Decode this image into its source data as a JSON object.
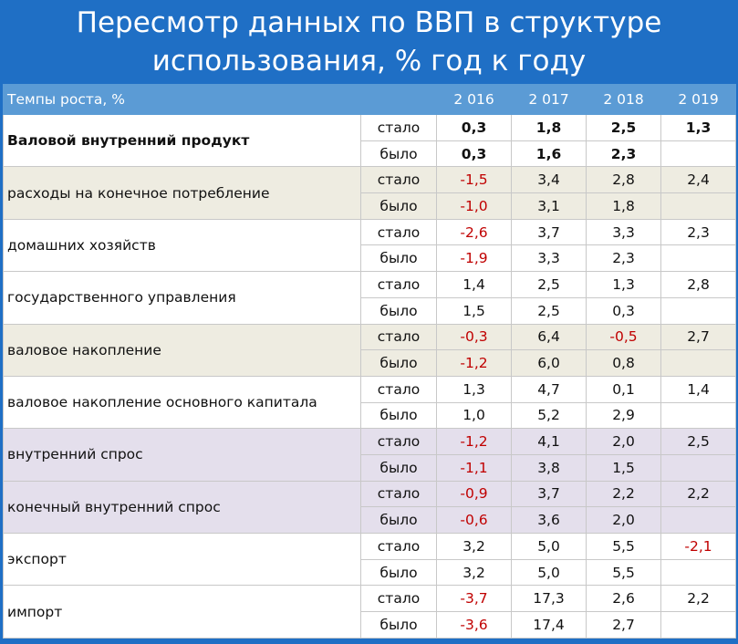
{
  "header": {
    "title": [
      "Пересмотр данных по ВВП в структуре",
      "использования, % год к году"
    ]
  },
  "table": {
    "columns": [
      "Темпы роста, %",
      "2 016",
      "2 017",
      "2 018",
      "2 019"
    ],
    "groups": [
      {
        "name": "Валовой внутренний продукт",
        "bold": true,
        "color": "#ffffff",
        "rows": [
          {
            "kind": "стало",
            "values": [
              "0,3",
              "1,8",
              "2,5",
              "1,3"
            ]
          },
          {
            "kind": "было",
            "values": [
              "0,3",
              "1,6",
              "2,3"
            ]
          }
        ]
      },
      {
        "name": "расходы на конечное потребление",
        "color": "#eeece1",
        "rows": [
          {
            "kind": "стало",
            "values": [
              "-1,5",
              "3,4",
              "2,8",
              "2,4"
            ]
          },
          {
            "kind": "было",
            "values": [
              "-1,0",
              "3,1",
              "1,8"
            ]
          }
        ]
      },
      {
        "name": "домашних хозяйств",
        "color": "#ffffff",
        "rows": [
          {
            "kind": "стало",
            "values": [
              "-2,6",
              "3,7",
              "3,3",
              "2,3"
            ]
          },
          {
            "kind": "было",
            "values": [
              "-1,9",
              "3,3",
              "2,3"
            ]
          }
        ]
      },
      {
        "name": "государственного управления",
        "color": "#ffffff",
        "rows": [
          {
            "kind": "стало",
            "values": [
              "1,4",
              "2,5",
              "1,3",
              "2,8"
            ]
          },
          {
            "kind": "было",
            "values": [
              "1,5",
              "2,5",
              "0,3"
            ]
          }
        ]
      },
      {
        "name": "валовое накопление",
        "color": "#eeece1",
        "rows": [
          {
            "kind": "стало",
            "values": [
              "-0,3",
              "6,4",
              "-0,5",
              "2,7"
            ]
          },
          {
            "kind": "было",
            "values": [
              "-1,2",
              "6,0",
              "0,8"
            ]
          }
        ]
      },
      {
        "name": "валовое накопление основного капитала",
        "color": "#ffffff",
        "rows": [
          {
            "kind": "стало",
            "values": [
              "1,3",
              "4,7",
              "0,1",
              "1,4"
            ]
          },
          {
            "kind": "было",
            "values": [
              "1,0",
              "5,2",
              "2,9"
            ]
          }
        ]
      },
      {
        "name": "внутренний спрос",
        "color": "#e4dfec",
        "rows": [
          {
            "kind": "стало",
            "values": [
              "-1,2",
              "4,1",
              "2,0",
              "2,5"
            ]
          },
          {
            "kind": "было",
            "values": [
              "-1,1",
              "3,8",
              "1,5"
            ]
          }
        ]
      },
      {
        "name": "конечный внутренний спрос",
        "color": "#e4dfec",
        "rows": [
          {
            "kind": "стало",
            "values": [
              "-0,9",
              "3,7",
              "2,2",
              "2,2"
            ]
          },
          {
            "kind": "было",
            "values": [
              "-0,6",
              "3,6",
              "2,0"
            ]
          }
        ]
      },
      {
        "name": "экспорт",
        "color": "#ffffff",
        "rows": [
          {
            "kind": "стало",
            "values": [
              "3,2",
              "5,0",
              "5,5",
              "-2,1"
            ]
          },
          {
            "kind": "было",
            "values": [
              "3,2",
              "5,0",
              "5,5"
            ]
          }
        ]
      },
      {
        "name": "импорт",
        "color": "#ffffff",
        "rows": [
          {
            "kind": "стало",
            "values": [
              "-3,7",
              "17,3",
              "2,6",
              "2,2"
            ]
          },
          {
            "kind": "было",
            "values": [
              "-3,6",
              "17,4",
              "2,7"
            ]
          }
        ]
      }
    ]
  }
}
